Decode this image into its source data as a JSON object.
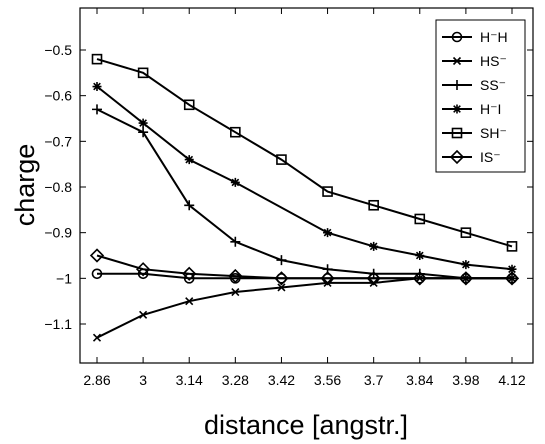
{
  "chart_data": {
    "type": "line",
    "xlabel": "distance [angstr.]",
    "ylabel": "charge",
    "categories": [
      "2.86",
      "3",
      "3.14",
      "3.28",
      "3.42",
      "3.56",
      "3.7",
      "3.84",
      "3.98",
      "4.12"
    ],
    "yticks": [
      "-0.5",
      "-0.6",
      "-0.7",
      "-0.8",
      "-0.9",
      "-1",
      "-1.1"
    ],
    "yticks_values": [
      -0.5,
      -0.6,
      -0.7,
      -0.8,
      -0.9,
      -1.0,
      -1.1
    ],
    "ylim": [
      -1.18,
      -0.45
    ],
    "grid": false,
    "legend_position": "top-right",
    "series": [
      {
        "name": "H⁻H",
        "marker": "circle",
        "values": [
          -0.99,
          -0.99,
          -1.0,
          -1.0,
          -1.0,
          -1.0,
          -1.0,
          -1.0,
          -1.0,
          -1.0
        ]
      },
      {
        "name": "HS⁻",
        "marker": "x",
        "values": [
          -1.13,
          -1.08,
          -1.05,
          -1.03,
          -1.02,
          -1.01,
          -1.01,
          -1.0,
          -1.0,
          -1.0
        ]
      },
      {
        "name": "SS⁻",
        "marker": "plus",
        "values": [
          -0.63,
          -0.68,
          -0.84,
          -0.92,
          -0.96,
          -0.98,
          -0.99,
          -0.99,
          -1.0,
          -1.0
        ]
      },
      {
        "name": "H⁻I",
        "marker": "asterisk",
        "values": [
          -0.58,
          -0.66,
          -0.74,
          -0.79,
          null,
          -0.9,
          -0.93,
          -0.95,
          -0.97,
          -0.98
        ]
      },
      {
        "name": "SH⁻",
        "marker": "square",
        "values": [
          -0.52,
          -0.55,
          -0.62,
          -0.68,
          -0.74,
          -0.81,
          -0.84,
          -0.87,
          -0.9,
          -0.93
        ]
      },
      {
        "name": "IS⁻",
        "marker": "diamond",
        "values": [
          -0.95,
          -0.98,
          -0.99,
          -0.995,
          -1.0,
          -1.0,
          -1.0,
          -1.0,
          -1.0,
          -1.0
        ]
      }
    ]
  }
}
